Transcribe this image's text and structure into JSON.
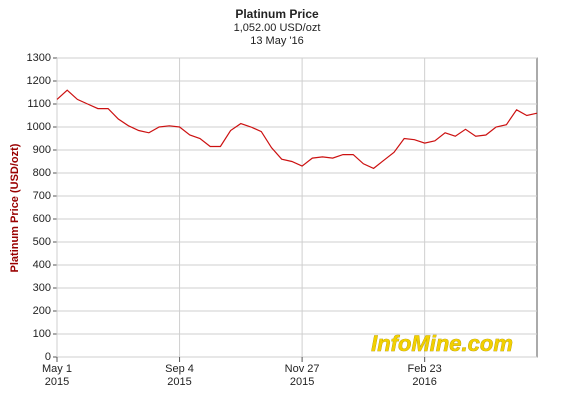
{
  "chart_data": {
    "type": "line",
    "title": "Platinum Price",
    "subtitle": "1,052.00 USD/ozt",
    "date_label": "13 May '16",
    "y_label": "Platinum Price (USD/ozt)",
    "watermark": "InfoMine.com",
    "grid": true,
    "x": [
      "2015-05-01",
      "2015-05-12",
      "2015-05-22",
      "2015-06-02",
      "2015-06-12",
      "2015-06-23",
      "2015-07-03",
      "2015-07-14",
      "2015-07-24",
      "2015-08-04",
      "2015-08-14",
      "2015-08-25",
      "2015-09-04",
      "2015-09-11",
      "2015-09-18",
      "2015-09-25",
      "2015-10-02",
      "2015-10-09",
      "2015-10-16",
      "2015-10-23",
      "2015-10-30",
      "2015-11-06",
      "2015-11-13",
      "2015-11-20",
      "2015-11-27",
      "2015-12-04",
      "2015-12-11",
      "2015-12-18",
      "2015-12-24",
      "2015-12-31",
      "2016-01-08",
      "2016-01-15",
      "2016-01-22",
      "2016-01-29",
      "2016-02-05",
      "2016-02-12",
      "2016-02-23",
      "2016-03-02",
      "2016-03-09",
      "2016-03-16",
      "2016-03-23",
      "2016-03-30",
      "2016-04-06",
      "2016-04-13",
      "2016-04-20",
      "2016-04-27",
      "2016-05-04",
      "2016-05-13"
    ],
    "series": [
      {
        "name": "Platinum Price",
        "color": "#cc1111",
        "values": [
          1120,
          1160,
          1120,
          1100,
          1080,
          1080,
          1035,
          1005,
          985,
          975,
          1000,
          1005,
          1000,
          965,
          950,
          915,
          915,
          985,
          1015,
          1000,
          980,
          910,
          860,
          850,
          830,
          865,
          870,
          865,
          880,
          880,
          840,
          820,
          855,
          890,
          950,
          945,
          930,
          940,
          975,
          960,
          990,
          960,
          965,
          1000,
          1010,
          1075,
          1050,
          1060
        ]
      }
    ],
    "xticks": [
      {
        "value": "2015-05-01",
        "label": [
          "May 1",
          "2015"
        ]
      },
      {
        "value": "2015-09-04",
        "label": [
          "Sep 4",
          "2015"
        ]
      },
      {
        "value": "2015-11-27",
        "label": [
          "Nov 27",
          "2015"
        ]
      },
      {
        "value": "2016-02-23",
        "label": [
          "Feb 23",
          "2016"
        ]
      }
    ],
    "ylim": [
      0,
      1300
    ],
    "yticks": [
      0,
      100,
      200,
      300,
      400,
      500,
      600,
      700,
      800,
      900,
      1000,
      1100,
      1200,
      1300
    ]
  }
}
